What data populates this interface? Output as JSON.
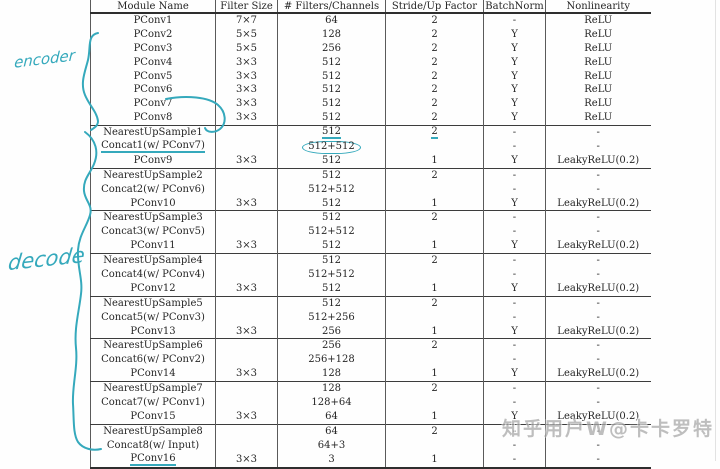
{
  "colors": {
    "pen": "#35a9bc",
    "watermark_gray": "#a9a9a9",
    "table_text": "#262626",
    "background": "#fefefe"
  },
  "annotations": {
    "encoder_label": "encoder",
    "decoder_label": "decode"
  },
  "watermark": "知乎用户W@卡卡罗特",
  "table": {
    "columns": [
      "Module Name",
      "Filter Size",
      "# Filters/Channels",
      "Stride/Up Factor",
      "BatchNorm",
      "Nonlinearity"
    ],
    "groups": [
      {
        "rows": [
          {
            "cells": [
              "PConv1",
              "7×7",
              "64",
              "2",
              "-",
              "ReLU"
            ]
          },
          {
            "cells": [
              "PConv2",
              "5×5",
              "128",
              "2",
              "Y",
              "ReLU"
            ]
          },
          {
            "cells": [
              "PConv3",
              "5×5",
              "256",
              "2",
              "Y",
              "ReLU"
            ]
          },
          {
            "cells": [
              "PConv4",
              "3×3",
              "512",
              "2",
              "Y",
              "ReLU"
            ]
          },
          {
            "cells": [
              "PConv5",
              "3×3",
              "512",
              "2",
              "Y",
              "ReLU"
            ]
          },
          {
            "cells": [
              "PConv6",
              "3×3",
              "512",
              "2",
              "Y",
              "ReLU"
            ]
          },
          {
            "cells": [
              "PConv7",
              "3×3",
              "512",
              "2",
              "Y",
              "ReLU"
            ]
          },
          {
            "cells": [
              "PConv8",
              "3×3",
              "512",
              "2",
              "Y",
              "ReLU"
            ]
          }
        ]
      },
      {
        "rows": [
          {
            "cells": [
              "NearestUpSample1",
              "",
              "512",
              "2",
              "-",
              "-"
            ],
            "marks": [
              {
                "col": 2,
                "type": "underline"
              },
              {
                "col": 3,
                "type": "underline"
              }
            ]
          },
          {
            "cells": [
              "Concat1(w/ PConv7)",
              "",
              "512+512",
              "",
              "-",
              "-"
            ],
            "marks": [
              {
                "col": 0,
                "type": "underline"
              },
              {
                "col": 2,
                "type": "circle"
              }
            ]
          },
          {
            "cells": [
              "PConv9",
              "3×3",
              "512",
              "1",
              "Y",
              "LeakyReLU(0.2)"
            ]
          }
        ]
      },
      {
        "rows": [
          {
            "cells": [
              "NearestUpSample2",
              "",
              "512",
              "2",
              "-",
              "-"
            ]
          },
          {
            "cells": [
              "Concat2(w/ PConv6)",
              "",
              "512+512",
              "",
              "-",
              "-"
            ]
          },
          {
            "cells": [
              "PConv10",
              "3×3",
              "512",
              "1",
              "Y",
              "LeakyReLU(0.2)"
            ]
          }
        ]
      },
      {
        "rows": [
          {
            "cells": [
              "NearestUpSample3",
              "",
              "512",
              "2",
              "-",
              "-"
            ]
          },
          {
            "cells": [
              "Concat3(w/ PConv5)",
              "",
              "512+512",
              "",
              "-",
              "-"
            ]
          },
          {
            "cells": [
              "PConv11",
              "3×3",
              "512",
              "1",
              "Y",
              "LeakyReLU(0.2)"
            ]
          }
        ]
      },
      {
        "rows": [
          {
            "cells": [
              "NearestUpSample4",
              "",
              "512",
              "2",
              "-",
              "-"
            ]
          },
          {
            "cells": [
              "Concat4(w/ PConv4)",
              "",
              "512+512",
              "",
              "-",
              "-"
            ]
          },
          {
            "cells": [
              "PConv12",
              "3×3",
              "512",
              "1",
              "Y",
              "LeakyReLU(0.2)"
            ]
          }
        ]
      },
      {
        "rows": [
          {
            "cells": [
              "NearestUpSample5",
              "",
              "512",
              "2",
              "-",
              "-"
            ]
          },
          {
            "cells": [
              "Concat5(w/ PConv3)",
              "",
              "512+256",
              "",
              "-",
              "-"
            ]
          },
          {
            "cells": [
              "PConv13",
              "3×3",
              "256",
              "1",
              "Y",
              "LeakyReLU(0.2)"
            ]
          }
        ]
      },
      {
        "rows": [
          {
            "cells": [
              "NearestUpSample6",
              "",
              "256",
              "2",
              "-",
              "-"
            ]
          },
          {
            "cells": [
              "Concat6(w/ PConv2)",
              "",
              "256+128",
              "",
              "-",
              "-"
            ]
          },
          {
            "cells": [
              "PConv14",
              "3×3",
              "128",
              "1",
              "Y",
              "LeakyReLU(0.2)"
            ]
          }
        ]
      },
      {
        "rows": [
          {
            "cells": [
              "NearestUpSample7",
              "",
              "128",
              "2",
              "-",
              "-"
            ]
          },
          {
            "cells": [
              "Concat7(w/ PConv1)",
              "",
              "128+64",
              "",
              "-",
              "-"
            ]
          },
          {
            "cells": [
              "PConv15",
              "3×3",
              "64",
              "1",
              "Y",
              "LeakyReLU(0.2)"
            ]
          }
        ]
      },
      {
        "rows": [
          {
            "cells": [
              "NearestUpSample8",
              "",
              "64",
              "2",
              "-",
              "-"
            ]
          },
          {
            "cells": [
              "Concat8(w/ Input)",
              "",
              "64+3",
              "",
              "-",
              "-"
            ]
          },
          {
            "cells": [
              "PConv16",
              "3×3",
              "3",
              "1",
              "-",
              "-"
            ],
            "marks": [
              {
                "col": 0,
                "type": "underline"
              }
            ]
          }
        ]
      }
    ]
  }
}
